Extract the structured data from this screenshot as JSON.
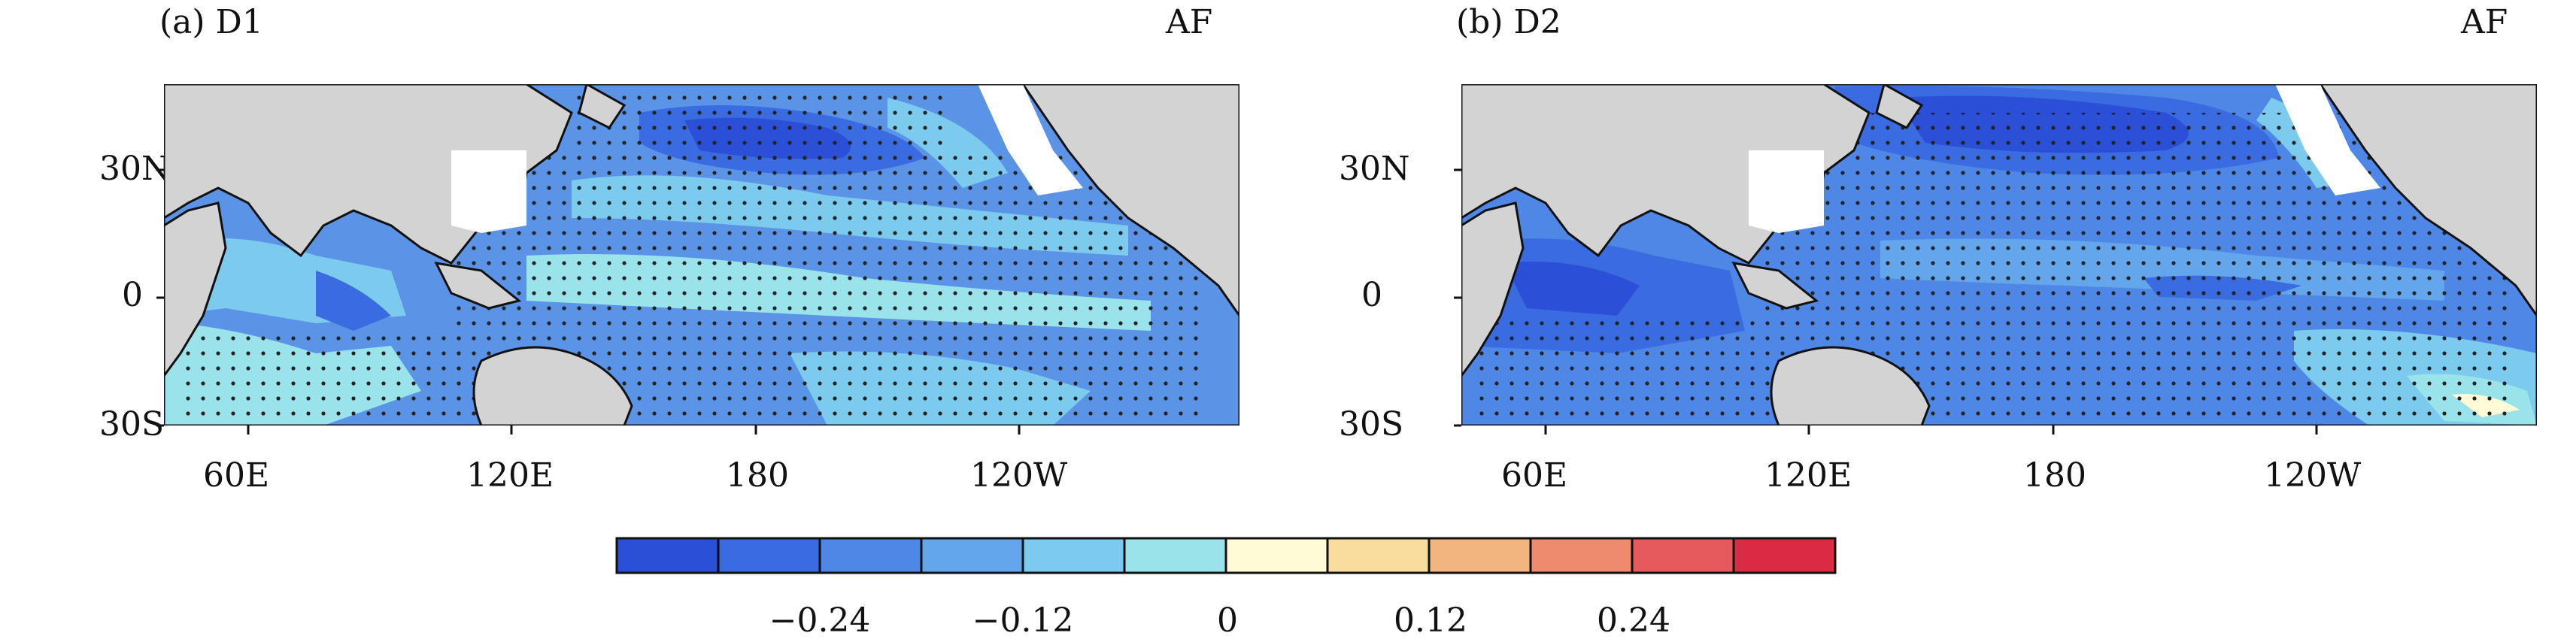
{
  "panels": [
    {
      "title": "(a) D1",
      "tag": "AF"
    },
    {
      "title": "(b) D2",
      "tag": "AF"
    }
  ],
  "lat_labels": [
    "30N",
    "0",
    "30S"
  ],
  "lon_labels": [
    "60E",
    "120E",
    "180",
    "120W"
  ],
  "colorbar": {
    "colors": [
      "#2b4fd6",
      "#3b6be0",
      "#4f87e6",
      "#63a6ec",
      "#7ccbee",
      "#9ae3ea",
      "#fffbd6",
      "#f8dd9f",
      "#f3b580",
      "#ee8a6e",
      "#e65a5c",
      "#d92b43"
    ],
    "tick_labels": [
      "−0.24",
      "−0.12",
      "0",
      "0.12",
      "0.24"
    ]
  },
  "colors": {
    "land": "#d3d3d3",
    "stipple": "#222222",
    "missing": "#ffffff"
  }
}
